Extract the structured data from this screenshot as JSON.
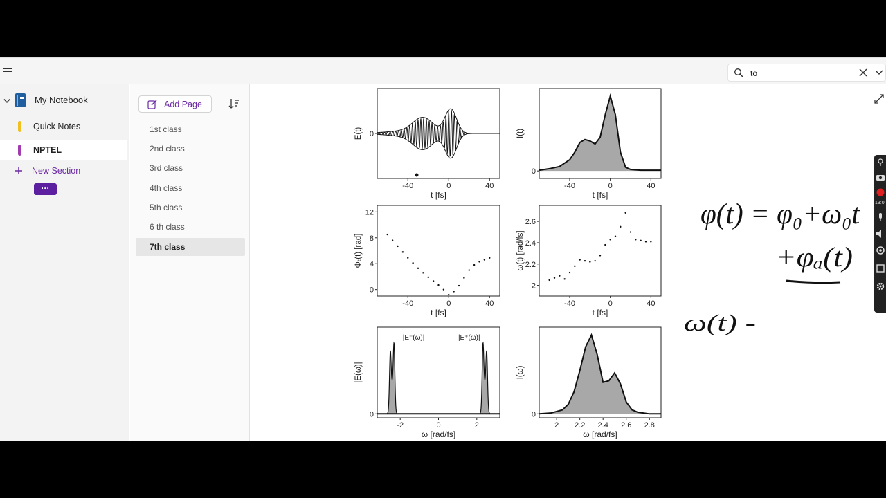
{
  "search": {
    "value": "to"
  },
  "notebook": {
    "title": "My Notebook"
  },
  "sections": [
    {
      "label": "Quick Notes",
      "color": "#f0c020",
      "active": false
    },
    {
      "label": "NPTEL",
      "color": "#a23bb0",
      "active": true
    }
  ],
  "new_section_label": "New Section",
  "more_label": "···",
  "add_page_label": "Add Page",
  "pages": [
    "1st class",
    "2nd class",
    "3rd class",
    "4th class",
    "5th class",
    "6 th class",
    "7th class"
  ],
  "active_page": "7th class",
  "colors": {
    "accent": "#6b2aa3",
    "more_btn": "#5b1fa0",
    "record": "#e02020"
  },
  "toolbar_time": "13:0",
  "handwriting": {
    "line1": "φ(t) = φ₀+ω₀t",
    "line2": "+φₐ(t)",
    "line3": "ω(t) -"
  },
  "chart_data": [
    {
      "type": "line",
      "ylabel": "E(t)",
      "xlabel": "t [fs]",
      "xticks": [
        -40,
        0,
        40
      ],
      "yticks": [
        0
      ],
      "xlim": [
        -70,
        50
      ]
    },
    {
      "type": "area",
      "ylabel": "I(t)",
      "xlabel": "t [fs]",
      "xticks": [
        -40,
        0,
        40
      ],
      "yticks": [
        0
      ],
      "xlim": [
        -70,
        50
      ],
      "x": [
        -70,
        -60,
        -50,
        -40,
        -35,
        -30,
        -25,
        -20,
        -15,
        -10,
        -5,
        0,
        5,
        10,
        15,
        20,
        30,
        40,
        50
      ],
      "y": [
        0.01,
        0.03,
        0.06,
        0.15,
        0.25,
        0.38,
        0.42,
        0.4,
        0.36,
        0.45,
        0.75,
        1.0,
        0.75,
        0.25,
        0.05,
        0.02,
        0.01,
        0.01,
        0.01
      ]
    },
    {
      "type": "scatter",
      "ylabel": "Φₜ(t) [rad]",
      "xlabel": "t [fs]",
      "xticks": [
        -40,
        0,
        40
      ],
      "yticks": [
        0,
        4,
        8,
        12
      ],
      "xlim": [
        -70,
        50
      ],
      "ylim": [
        -1,
        13
      ],
      "x": [
        -60,
        -55,
        -50,
        -45,
        -40,
        -35,
        -30,
        -25,
        -20,
        -15,
        -10,
        -5,
        0,
        5,
        10,
        15,
        20,
        25,
        30,
        35,
        40
      ],
      "y": [
        8.5,
        7.6,
        6.7,
        5.8,
        4.9,
        4.1,
        3.3,
        2.6,
        1.9,
        1.3,
        0.7,
        0.0,
        -0.8,
        -0.3,
        0.6,
        1.8,
        3.0,
        3.8,
        4.3,
        4.6,
        4.9
      ]
    },
    {
      "type": "scatter",
      "ylabel": "ω(t) [rad/fs]",
      "xlabel": "t [fs]",
      "xticks": [
        -40,
        0,
        40
      ],
      "yticks": [
        2.0,
        2.2,
        2.4,
        2.6
      ],
      "xlim": [
        -70,
        50
      ],
      "ylim": [
        1.9,
        2.75
      ],
      "x": [
        -60,
        -55,
        -50,
        -45,
        -40,
        -35,
        -30,
        -25,
        -20,
        -15,
        -10,
        -5,
        0,
        5,
        10,
        15,
        20,
        25,
        30,
        35,
        40
      ],
      "y": [
        2.05,
        2.07,
        2.09,
        2.06,
        2.12,
        2.18,
        2.24,
        2.23,
        2.22,
        2.23,
        2.28,
        2.38,
        2.43,
        2.46,
        2.55,
        2.68,
        2.5,
        2.43,
        2.42,
        2.41,
        2.41
      ]
    },
    {
      "type": "area",
      "ylabel": "|E(ω)|",
      "xlabel": "ω [rad/fs]",
      "xticks": [
        -2,
        0,
        2
      ],
      "yticks": [
        0
      ],
      "xlim": [
        -3.2,
        3.2
      ],
      "annotations": [
        "|E⁻(ω)|",
        "|E⁺(ω)|"
      ]
    },
    {
      "type": "area",
      "ylabel": "I(ω)",
      "xlabel": "ω [rad/fs]",
      "xticks": [
        2.0,
        2.2,
        2.4,
        2.6,
        2.8
      ],
      "yticks": [
        0
      ],
      "xlim": [
        1.85,
        2.9
      ],
      "x": [
        1.85,
        1.95,
        2.05,
        2.1,
        2.15,
        2.2,
        2.25,
        2.3,
        2.35,
        2.4,
        2.45,
        2.5,
        2.55,
        2.6,
        2.65,
        2.7,
        2.8,
        2.9
      ],
      "y": [
        0.0,
        0.01,
        0.05,
        0.12,
        0.28,
        0.55,
        0.85,
        1.0,
        0.75,
        0.4,
        0.42,
        0.52,
        0.38,
        0.15,
        0.05,
        0.02,
        0.0,
        0.0
      ]
    }
  ]
}
